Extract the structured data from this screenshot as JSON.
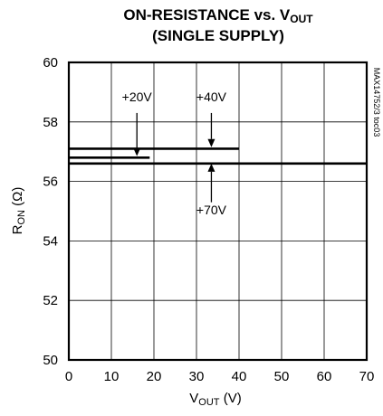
{
  "chart_data": {
    "type": "line",
    "title_line1": "ON-RESISTANCE vs. V",
    "title_line1_sub": "OUT",
    "title_line2": "(SINGLE SUPPLY)",
    "xlabel": "V",
    "xlabel_sub": "OUT",
    "xlabel_unit": " (V)",
    "ylabel": "R",
    "ylabel_sub": "ON",
    "ylabel_unit": " (Ω)",
    "xlim": [
      0,
      70
    ],
    "ylim": [
      50,
      60
    ],
    "x_ticks": [
      0,
      10,
      20,
      30,
      40,
      50,
      60,
      70
    ],
    "y_ticks": [
      50,
      52,
      54,
      56,
      58,
      60
    ],
    "grid": true,
    "part_code": "MAX14752/3 toc03",
    "series": [
      {
        "name": "+20V",
        "x": [
          0,
          19
        ],
        "y": [
          56.8,
          56.8
        ],
        "color": "#000000"
      },
      {
        "name": "+40V",
        "x": [
          0,
          40
        ],
        "y": [
          57.1,
          57.1
        ],
        "color": "#000000"
      },
      {
        "name": "+70V",
        "x": [
          0,
          70
        ],
        "y": [
          56.6,
          56.6
        ],
        "color": "#000000"
      }
    ],
    "annotations": [
      {
        "text": "+20V",
        "label_x": 16,
        "label_y": 58.7,
        "arrow_from": [
          16,
          58.3
        ],
        "arrow_to": [
          16,
          56.85
        ]
      },
      {
        "text": "+40V",
        "label_x": 33.5,
        "label_y": 58.7,
        "arrow_from": [
          33.5,
          58.3
        ],
        "arrow_to": [
          33.5,
          57.15
        ]
      },
      {
        "text": "+70V",
        "label_x": 33.5,
        "label_y": 54.9,
        "arrow_from": [
          33.5,
          55.3
        ],
        "arrow_to": [
          33.5,
          56.6
        ]
      }
    ]
  }
}
